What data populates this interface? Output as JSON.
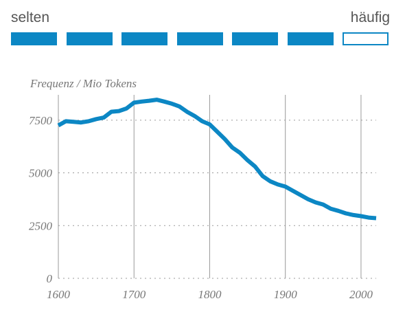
{
  "legend": {
    "low_label": "selten",
    "high_label": "häufig",
    "segments": [
      {
        "filled": true
      },
      {
        "filled": true
      },
      {
        "filled": true
      },
      {
        "filled": true
      },
      {
        "filled": true
      },
      {
        "filled": true
      },
      {
        "filled": false
      }
    ],
    "accent_color": "#0c87c4"
  },
  "chart_data": {
    "type": "line",
    "ylabel": "Frequenz / Mio Tokens",
    "xlabel": "",
    "xlim": [
      1600,
      2020
    ],
    "ylim": [
      0,
      8700
    ],
    "x_ticks": [
      1600,
      1700,
      1800,
      1900,
      2000
    ],
    "y_ticks": [
      0,
      2500,
      5000,
      7500
    ],
    "grid": {
      "x": "solid",
      "y": "dotted"
    },
    "line_color": "#0c87c4",
    "series": [
      {
        "points": [
          [
            1600,
            7250
          ],
          [
            1610,
            7450
          ],
          [
            1620,
            7420
          ],
          [
            1630,
            7390
          ],
          [
            1640,
            7450
          ],
          [
            1650,
            7550
          ],
          [
            1660,
            7620
          ],
          [
            1670,
            7900
          ],
          [
            1680,
            7930
          ],
          [
            1690,
            8050
          ],
          [
            1700,
            8330
          ],
          [
            1710,
            8380
          ],
          [
            1720,
            8420
          ],
          [
            1730,
            8470
          ],
          [
            1740,
            8380
          ],
          [
            1750,
            8280
          ],
          [
            1760,
            8150
          ],
          [
            1770,
            7900
          ],
          [
            1780,
            7700
          ],
          [
            1790,
            7450
          ],
          [
            1800,
            7300
          ],
          [
            1810,
            6950
          ],
          [
            1820,
            6600
          ],
          [
            1830,
            6200
          ],
          [
            1840,
            5950
          ],
          [
            1850,
            5600
          ],
          [
            1860,
            5300
          ],
          [
            1870,
            4850
          ],
          [
            1880,
            4600
          ],
          [
            1890,
            4450
          ],
          [
            1900,
            4350
          ],
          [
            1910,
            4150
          ],
          [
            1920,
            3950
          ],
          [
            1930,
            3750
          ],
          [
            1940,
            3600
          ],
          [
            1950,
            3500
          ],
          [
            1960,
            3300
          ],
          [
            1970,
            3200
          ],
          [
            1980,
            3080
          ],
          [
            1990,
            3000
          ],
          [
            2000,
            2950
          ],
          [
            2010,
            2880
          ],
          [
            2020,
            2850
          ]
        ]
      }
    ]
  }
}
